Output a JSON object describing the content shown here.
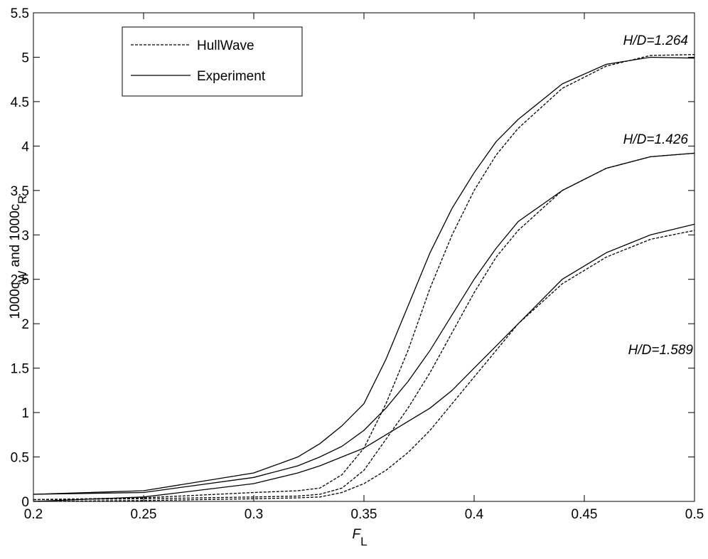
{
  "chart_data": {
    "type": "line",
    "xlabel": [
      {
        "text": "F"
      },
      {
        "text": "L",
        "sub": true
      }
    ],
    "ylabel": [
      {
        "text": "1000c"
      },
      {
        "text": "W",
        "sub": true
      },
      {
        "text": " and 1000c"
      },
      {
        "text": "R",
        "sub": true
      }
    ],
    "x": [
      0.2,
      0.25,
      0.3,
      0.32,
      0.33,
      0.34,
      0.35,
      0.36,
      0.37,
      0.38,
      0.39,
      0.4,
      0.41,
      0.42,
      0.44,
      0.46,
      0.48,
      0.5
    ],
    "xlim": [
      0.2,
      0.5
    ],
    "xticks": [
      0.2,
      0.25,
      0.3,
      0.35,
      0.4,
      0.45,
      0.5
    ],
    "ylim": [
      0,
      5.5
    ],
    "yticks": [
      0,
      0.5,
      1,
      1.5,
      2,
      2.5,
      3,
      3.5,
      4,
      4.5,
      5,
      5.5
    ],
    "grid": false,
    "legend": "upper left",
    "series": [
      {
        "name": "HullWave",
        "color": "#000000",
        "dashed": true,
        "curves": [
          {
            "label": "H/D=1.264",
            "values": [
              0.02,
              0.04,
              0.1,
              0.12,
              0.15,
              0.3,
              0.6,
              1.1,
              1.7,
              2.4,
              3.0,
              3.5,
              3.9,
              4.2,
              4.65,
              4.9,
              5.02,
              5.03
            ]
          },
          {
            "label": "H/D=1.426",
            "values": [
              0.02,
              0.03,
              0.05,
              0.06,
              0.08,
              0.15,
              0.35,
              0.7,
              1.05,
              1.45,
              1.9,
              2.35,
              2.75,
              3.05,
              3.5,
              3.75,
              3.88,
              3.92
            ]
          },
          {
            "label": "H/D=1.589",
            "values": [
              0.0,
              0.01,
              0.03,
              0.04,
              0.05,
              0.1,
              0.2,
              0.35,
              0.55,
              0.8,
              1.1,
              1.4,
              1.7,
              2.0,
              2.45,
              2.75,
              2.95,
              3.05
            ]
          }
        ]
      },
      {
        "name": "Experiment",
        "color": "#000000",
        "dashed": false,
        "curves": [
          {
            "label": "H/D=1.264",
            "values": [
              0.08,
              0.12,
              0.32,
              0.5,
              0.65,
              0.85,
              1.1,
              1.6,
              2.2,
              2.8,
              3.3,
              3.7,
              4.05,
              4.3,
              4.7,
              4.92,
              5.0,
              4.99
            ]
          },
          {
            "label": "H/D=1.426",
            "values": [
              0.08,
              0.1,
              0.27,
              0.4,
              0.5,
              0.62,
              0.8,
              1.05,
              1.35,
              1.7,
              2.1,
              2.5,
              2.85,
              3.15,
              3.5,
              3.75,
              3.88,
              3.92
            ]
          },
          {
            "label": "H/D=1.589",
            "values": [
              0.0,
              0.05,
              0.2,
              0.32,
              0.4,
              0.5,
              0.6,
              0.75,
              0.9,
              1.05,
              1.25,
              1.5,
              1.75,
              2.0,
              2.5,
              2.8,
              3.0,
              3.12
            ]
          }
        ]
      }
    ]
  }
}
